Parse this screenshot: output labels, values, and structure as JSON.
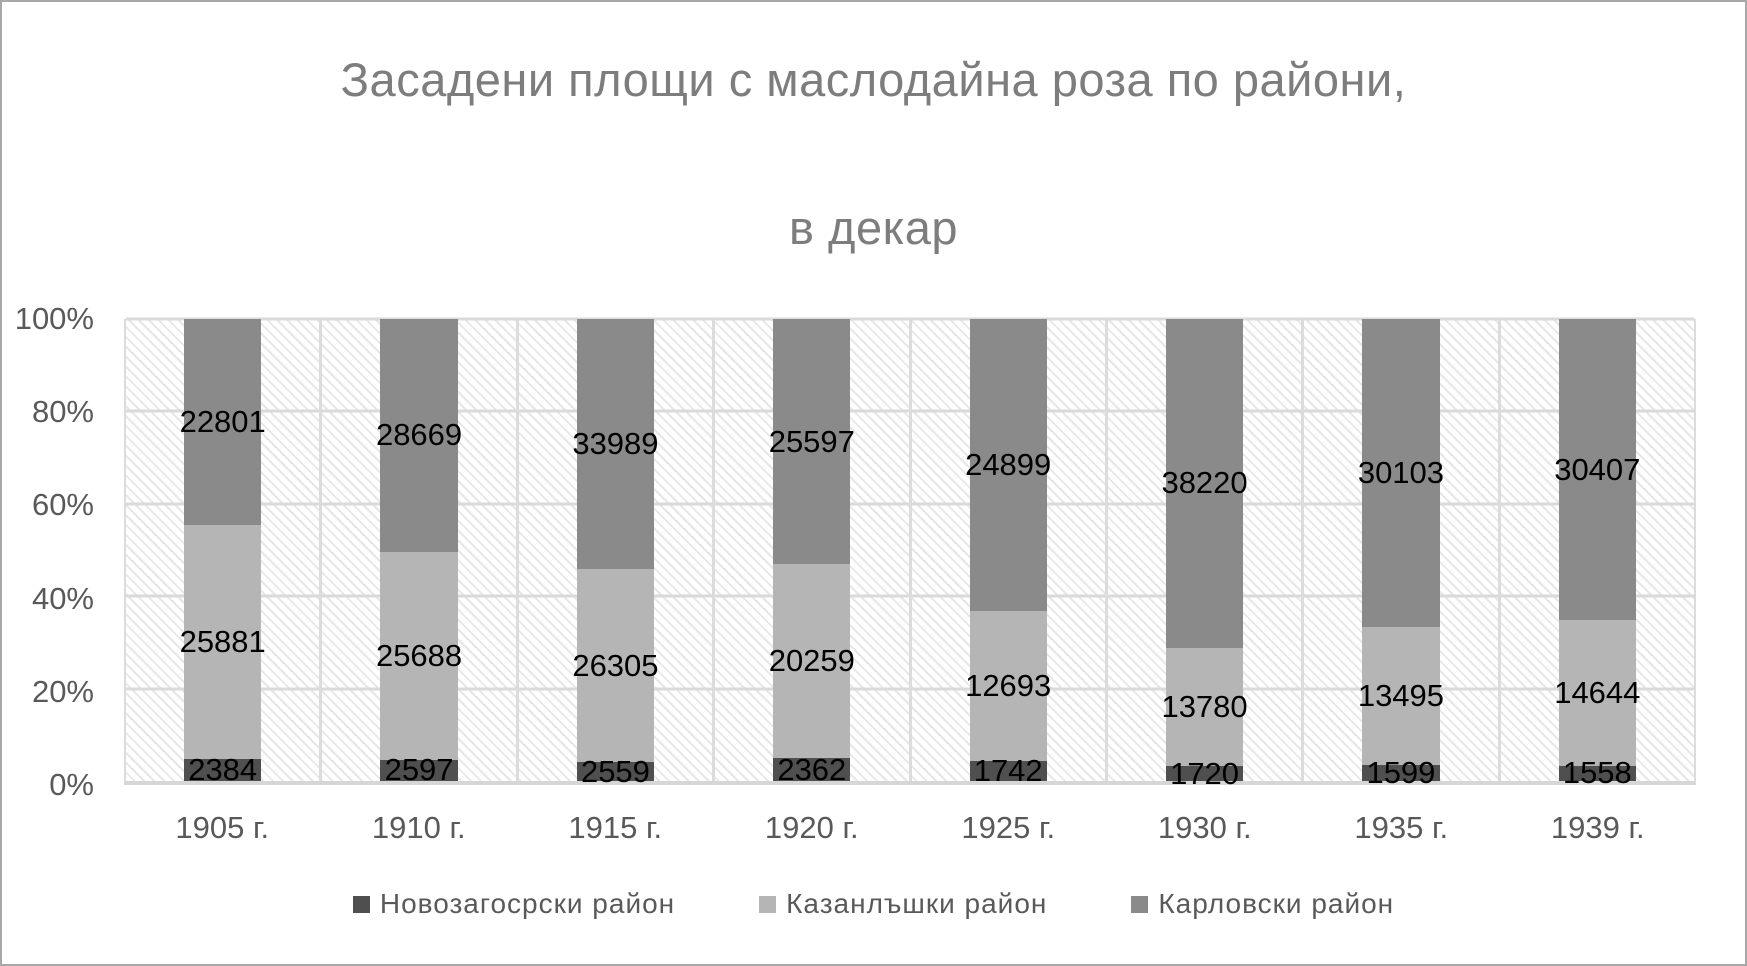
{
  "window": {
    "background": "#ffffff",
    "border_color": "#a8a8a8"
  },
  "chart_data": {
    "type": "bar",
    "subtype": "stacked-100-percent",
    "title_line1": "Засадени площи с маслодайна роза по райони,",
    "title_line2": "в декар",
    "categories": [
      "1905 г.",
      "1910 г.",
      "1915 г.",
      "1920 г.",
      "1925 г.",
      "1930 г.",
      "1935 г.",
      "1939 г."
    ],
    "series": [
      {
        "name": "Новозагосрски район",
        "color": "#4f4f4f",
        "values": [
          2384,
          2597,
          2559,
          2362,
          1742,
          1720,
          1599,
          1558
        ]
      },
      {
        "name": "Казанлъшки район",
        "color": "#b5b5b5",
        "values": [
          25881,
          25688,
          26305,
          20259,
          12693,
          13780,
          13495,
          14644
        ]
      },
      {
        "name": "Карловски район",
        "color": "#8a8a8a",
        "values": [
          22801,
          28669,
          33989,
          25597,
          24899,
          38220,
          30103,
          30407
        ]
      }
    ],
    "y_ticks": [
      "100%",
      "80%",
      "60%",
      "40%",
      "20%",
      "0%"
    ],
    "ylim": [
      "0%",
      "100%"
    ],
    "grid": true,
    "legend_position": "bottom",
    "plot_background": "white-diagonal-hatch",
    "data_label_color": "#000000",
    "axis_label_color": "#595959",
    "title_color": "#7d7d7d",
    "gridline_color": "#dadada"
  }
}
